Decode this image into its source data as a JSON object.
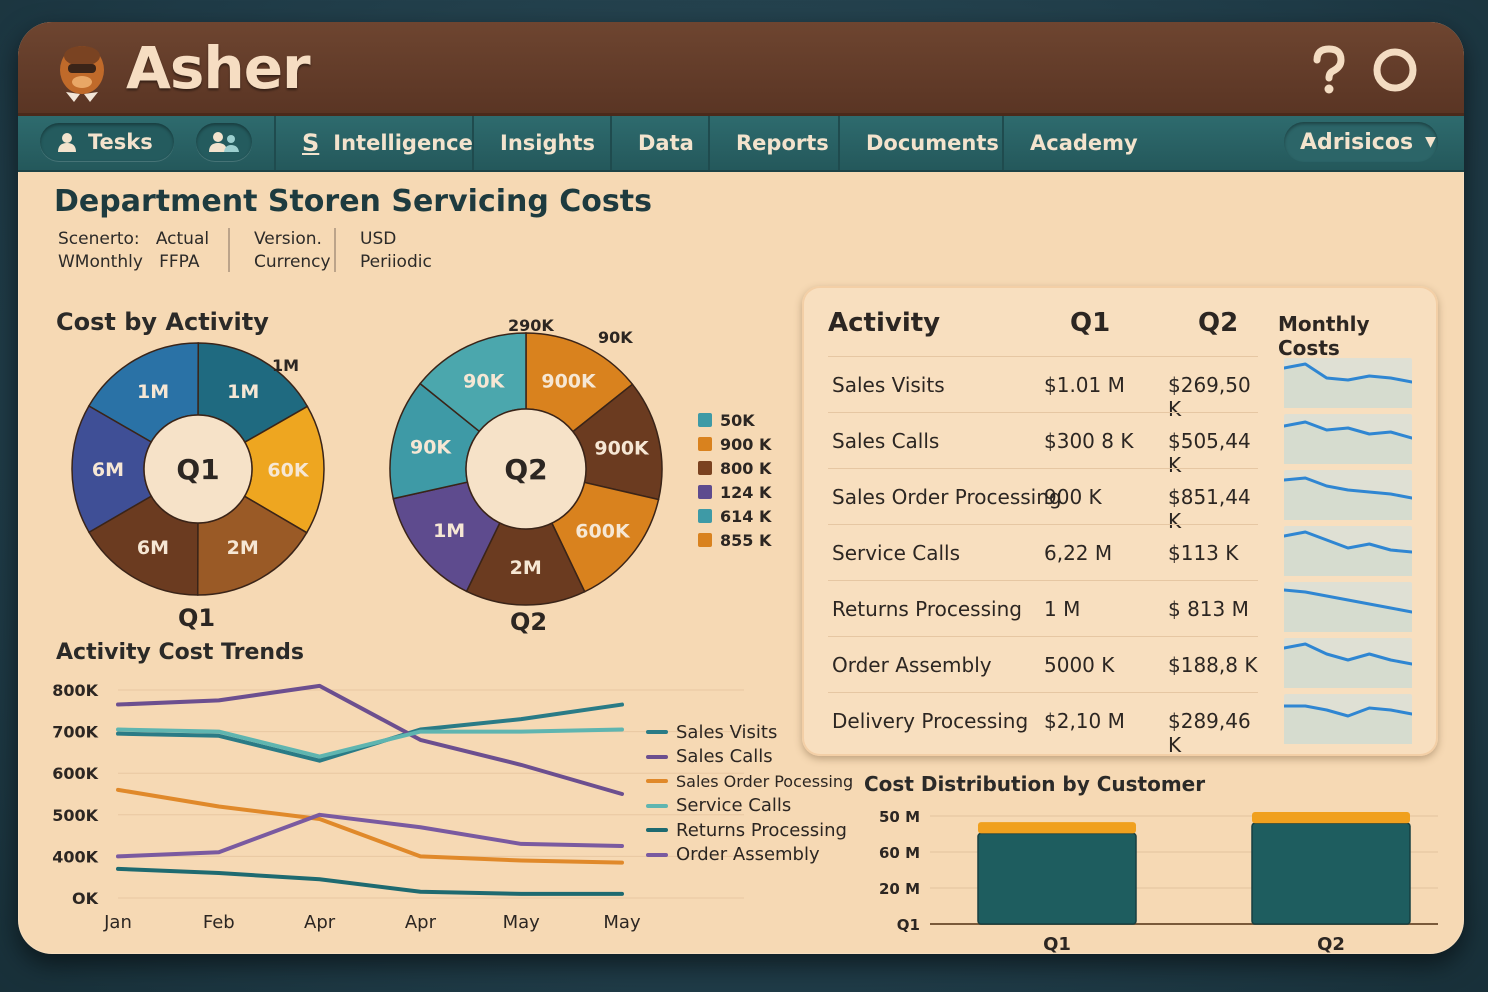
{
  "app": {
    "title": "Asher"
  },
  "colors": {
    "teal": "#4b9ea3",
    "dark_teal": "#1e5d5f",
    "orange": "#d9821e",
    "brown": "#6b3b20",
    "purple": "#5e4b8e",
    "blue": "#2a72a6",
    "navy": "#3f4f96",
    "amber": "#eea620"
  },
  "titlebar": {
    "help_icon": "question-icon",
    "power_icon": "circle-icon"
  },
  "nav": {
    "tasks_label": "Tesks",
    "items": [
      "Intelligence",
      "Insights",
      "Data",
      "Reports",
      "Documents",
      "Academy"
    ],
    "user_label": "Adrisicos"
  },
  "page": {
    "title": "Department Storen Servicing Costs",
    "meta": {
      "scenario_label": "Scenerto:",
      "scenario_value": "Actual",
      "period_label": "WMonthly",
      "period_value": "FFPA",
      "version_label": "Version.",
      "currency_label": "Currency",
      "currency_value": "USD",
      "mode_value": "Periiodic"
    }
  },
  "cost_by_activity": {
    "title": "Cost by Activity",
    "q1": {
      "center": "Q1",
      "caption": "Q1",
      "outer_label": "1M",
      "slices": [
        {
          "label": "1M",
          "color": "#2a72a6"
        },
        {
          "label": "1M",
          "color": "#1f6a80"
        },
        {
          "label": "60K",
          "color": "#eea620"
        },
        {
          "label": "2M",
          "color": "#9a5a26"
        },
        {
          "label": "6M",
          "color": "#6b3b20"
        },
        {
          "label": "6M",
          "color": "#3f4f96"
        }
      ]
    },
    "q2": {
      "center": "Q2",
      "caption": "Q2",
      "outer_labels": [
        "290K",
        "90K"
      ],
      "slices": [
        {
          "label": "900K",
          "color": "#d9821e"
        },
        {
          "label": "900K",
          "color": "#6b3b20"
        },
        {
          "label": "600K",
          "color": "#d9821e"
        },
        {
          "label": "2M",
          "color": "#6b3b20"
        },
        {
          "label": "1M",
          "color": "#5e4b8e"
        },
        {
          "label": "90K",
          "color": "#3e9aa6"
        },
        {
          "label": "90K",
          "color": "#4ba7ad"
        }
      ]
    },
    "legend": [
      {
        "label": "50K",
        "color": "#3e9aa6"
      },
      {
        "label": "900 K",
        "color": "#d9821e"
      },
      {
        "label": "800 K",
        "color": "#7a4220"
      },
      {
        "label": "124 K",
        "color": "#5e4b8e"
      },
      {
        "label": "614 K",
        "color": "#3e9aa6"
      },
      {
        "label": "855 K",
        "color": "#d9821e"
      }
    ]
  },
  "activity_table": {
    "headers": [
      "Activity",
      "Q1",
      "Q2",
      "Monthly Costs"
    ],
    "rows": [
      {
        "activity": "Sales Visits",
        "q1": "$1.01 M",
        "q2": "$269,50 K"
      },
      {
        "activity": "Sales Calls",
        "q1": "$300 8 K",
        "q2": "$505,44 K"
      },
      {
        "activity": "Sales Order Processing",
        "q1": "900 K",
        "q2": "$851,44 K"
      },
      {
        "activity": "Service Calls",
        "q1": "6,22 M",
        "q2": "$113 K"
      },
      {
        "activity": "Returns Processing",
        "q1": "1 M",
        "q2": "$ 813 M"
      },
      {
        "activity": "Order Assembly",
        "q1": "5000 K",
        "q2": "$188,8 K"
      },
      {
        "activity": "Delivery Processing",
        "q1": "$2,10 M",
        "q2": "$289,46 K"
      }
    ]
  },
  "chart_data": [
    {
      "type": "pie",
      "title": "Q1",
      "categories": [
        "1M",
        "1M",
        "60K",
        "2M",
        "6M",
        "6M"
      ],
      "values": [
        16.7,
        16.7,
        16.7,
        16.6,
        16.6,
        16.7
      ]
    },
    {
      "type": "pie",
      "title": "Q2",
      "categories": [
        "900K",
        "900K",
        "600K",
        "2M",
        "1M",
        "90K",
        "90K"
      ],
      "values": [
        14.3,
        14.3,
        14.3,
        14.3,
        14.3,
        14.3,
        14.2
      ]
    },
    {
      "type": "line",
      "title": "Activity Cost Trends",
      "categories": [
        "Jan",
        "Feb",
        "Apr",
        "Apr",
        "May",
        "May"
      ],
      "x": [
        0,
        1,
        2,
        3,
        4,
        5
      ],
      "y_ticks": [
        "OK",
        "400K",
        "500K",
        "600K",
        "700K",
        "800K"
      ],
      "ylim": [
        300,
        800
      ],
      "series": [
        {
          "name": "Sales Visits",
          "color": "#2a7b86",
          "values": [
            695,
            690,
            630,
            705,
            730,
            765
          ]
        },
        {
          "name": "Sales Calls",
          "color": "#6c4f8f",
          "values": [
            765,
            775,
            810,
            680,
            620,
            550
          ]
        },
        {
          "name": "Sales Order Pocessing",
          "color": "#e0892a",
          "values": [
            560,
            520,
            490,
            400,
            390,
            385
          ]
        },
        {
          "name": "Service Calls",
          "color": "#5fb5b0",
          "values": [
            705,
            700,
            640,
            700,
            700,
            705
          ]
        },
        {
          "name": "Returns Processing",
          "color": "#1e6a70",
          "values": [
            370,
            360,
            345,
            315,
            310,
            310
          ]
        },
        {
          "name": "Order Assembly",
          "color": "#7a5aa0",
          "values": [
            400,
            410,
            500,
            470,
            430,
            425
          ]
        }
      ]
    },
    {
      "type": "bar",
      "title": "Cost Distribution by Customer",
      "categories": [
        "Q1",
        "Q2"
      ],
      "y_ticks": [
        "Q1",
        "20 M",
        "60 M",
        "50 M"
      ],
      "series": [
        {
          "name": "base",
          "color": "#1e5d5f",
          "values": [
            89,
            99
          ]
        },
        {
          "name": "top",
          "color": "#f0a01e",
          "values": [
            11,
            11
          ]
        }
      ]
    }
  ]
}
